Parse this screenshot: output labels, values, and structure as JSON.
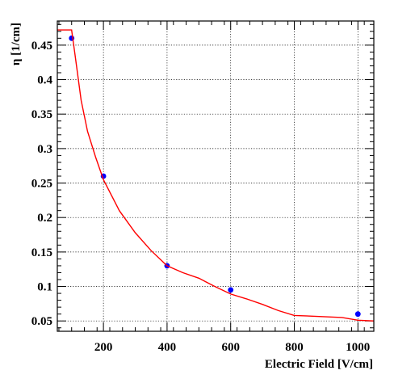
{
  "chart_data": {
    "type": "scatter",
    "title": "",
    "xlabel": "Electric Field [V/cm]",
    "ylabel": "η [1/cm]",
    "xlim": [
      55,
      1050
    ],
    "ylim": [
      0.035,
      0.485
    ],
    "grid": true,
    "legend": "none",
    "x_ticks": [
      200,
      400,
      600,
      800,
      1000
    ],
    "x_tick_labels": [
      "200",
      "400",
      "600",
      "800",
      "1000"
    ],
    "y_ticks": [
      0.05,
      0.1,
      0.15,
      0.2,
      0.25,
      0.3,
      0.35,
      0.4,
      0.45
    ],
    "y_tick_labels": [
      "0.05",
      "0.1",
      "0.15",
      "0.2",
      "0.25",
      "0.3",
      "0.35",
      "0.4",
      "0.45"
    ],
    "series": [
      {
        "kind": "points",
        "color": "#0000ff",
        "x": [
          100,
          200,
          400,
          600,
          1000
        ],
        "y": [
          0.46,
          0.26,
          0.13,
          0.095,
          0.06
        ]
      },
      {
        "kind": "line",
        "color": "#ff0000",
        "x": [
          55,
          100,
          110,
          130,
          150,
          175,
          200,
          250,
          300,
          350,
          400,
          450,
          500,
          550,
          600,
          650,
          700,
          750,
          800,
          850,
          900,
          950,
          1000,
          1050
        ],
        "y": [
          0.472,
          0.472,
          0.438,
          0.37,
          0.325,
          0.288,
          0.255,
          0.21,
          0.178,
          0.152,
          0.13,
          0.12,
          0.112,
          0.1,
          0.089,
          0.082,
          0.074,
          0.065,
          0.058,
          0.057,
          0.056,
          0.055,
          0.051,
          0.05
        ]
      }
    ]
  }
}
